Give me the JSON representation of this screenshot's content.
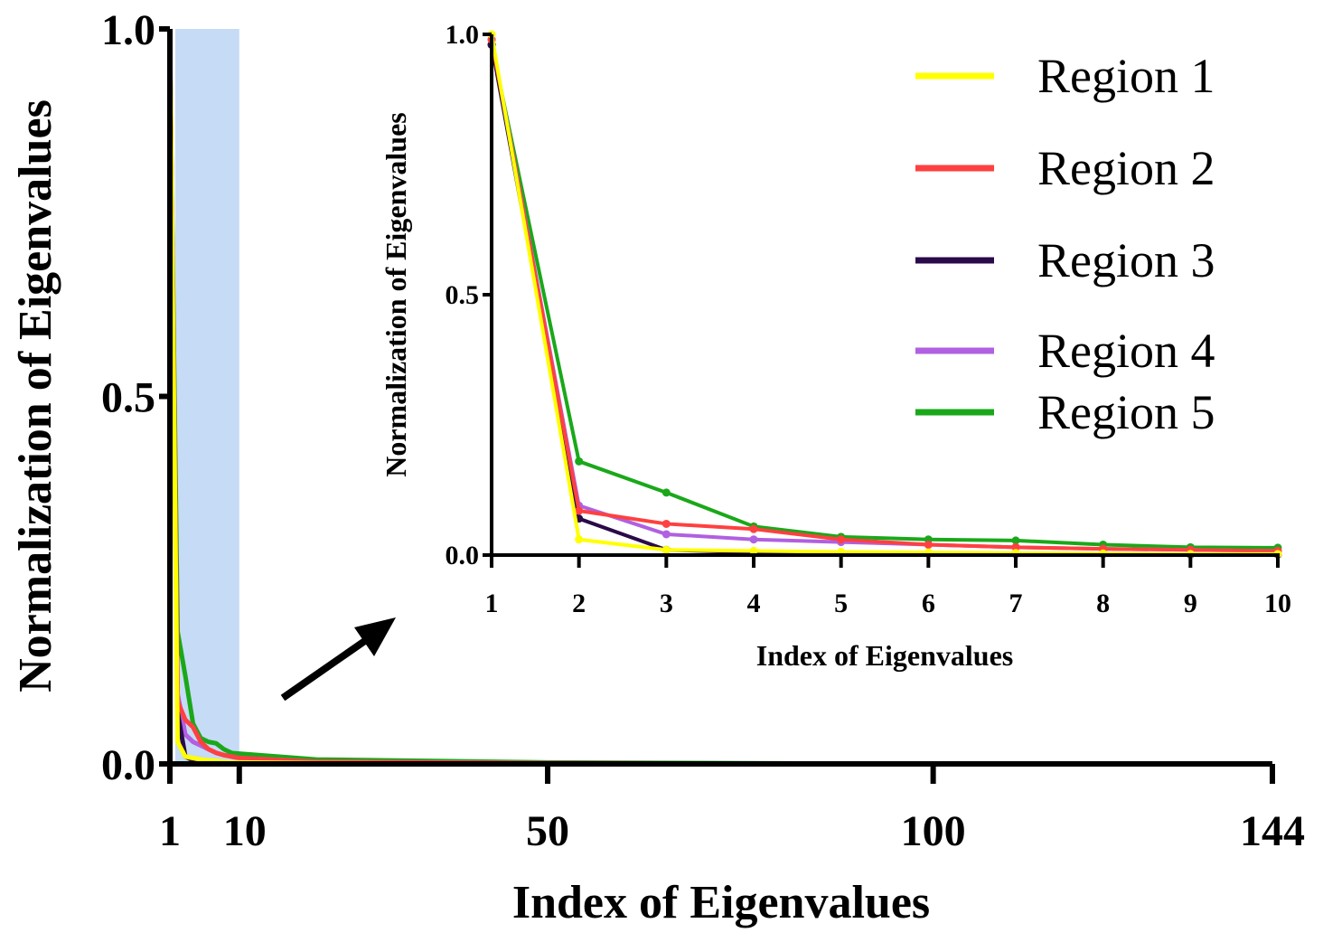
{
  "chart_data": [
    {
      "type": "line",
      "title": "",
      "xlabel": "Index of Eigenvalues",
      "ylabel": "Normalization of Eigenvalues",
      "xlim": [
        1,
        144
      ],
      "ylim": [
        0,
        1
      ],
      "xticks": [
        1,
        10,
        50,
        100,
        144
      ],
      "xtick_labels": [
        "1",
        "10",
        "50",
        "100",
        "144"
      ],
      "yticks": [
        0,
        0.5,
        1
      ],
      "ytick_labels": [
        "0.0",
        "0.5",
        "1.0"
      ],
      "highlight_range": [
        1,
        10
      ],
      "highlight_color": "#c6dbf5",
      "series": [
        {
          "name": "Region 1",
          "color": "#ffff00",
          "x": [
            1,
            2,
            3,
            4,
            5,
            6,
            7,
            8,
            9,
            10,
            20,
            50,
            100,
            144
          ],
          "values": [
            1.0,
            0.03,
            0.01,
            0.008,
            0.006,
            0.005,
            0.004,
            0.003,
            0.002,
            0.002,
            0.001,
            0.0,
            0.0,
            0.0
          ]
        },
        {
          "name": "Region 2",
          "color": "#ff4040",
          "x": [
            1,
            2,
            3,
            4,
            5,
            6,
            7,
            8,
            9,
            10,
            20,
            50,
            100,
            144
          ],
          "values": [
            0.99,
            0.085,
            0.06,
            0.05,
            0.03,
            0.02,
            0.015,
            0.012,
            0.01,
            0.008,
            0.003,
            0.001,
            0.0,
            0.0
          ]
        },
        {
          "name": "Region 3",
          "color": "#2a0a4a",
          "x": [
            1,
            2,
            3,
            4,
            5,
            6,
            7,
            8,
            9,
            10,
            20,
            50,
            100,
            144
          ],
          "values": [
            0.98,
            0.07,
            0.01,
            0.005,
            0.004,
            0.003,
            0.002,
            0.002,
            0.001,
            0.001,
            0.0,
            0.0,
            0.0,
            0.0
          ]
        },
        {
          "name": "Region 4",
          "color": "#b060e0",
          "x": [
            1,
            2,
            3,
            4,
            5,
            6,
            7,
            8,
            9,
            10,
            20,
            50,
            100,
            144
          ],
          "values": [
            0.99,
            0.095,
            0.04,
            0.03,
            0.025,
            0.02,
            0.015,
            0.012,
            0.01,
            0.008,
            0.003,
            0.001,
            0.0,
            0.0
          ]
        },
        {
          "name": "Region 5",
          "color": "#1aa81a",
          "x": [
            1,
            2,
            3,
            4,
            5,
            6,
            7,
            8,
            9,
            10,
            20,
            50,
            100,
            144
          ],
          "values": [
            0.98,
            0.18,
            0.12,
            0.055,
            0.035,
            0.03,
            0.028,
            0.02,
            0.015,
            0.014,
            0.006,
            0.002,
            0.0,
            0.0
          ]
        }
      ]
    },
    {
      "type": "line",
      "title": "",
      "xlabel": "Index of Eigenvalues",
      "ylabel": "Normalization of Eigenvalues",
      "xlim": [
        1,
        10
      ],
      "ylim": [
        0,
        1
      ],
      "xticks": [
        1,
        2,
        3,
        4,
        5,
        6,
        7,
        8,
        9,
        10
      ],
      "xtick_labels": [
        "1",
        "2",
        "3",
        "4",
        "5",
        "6",
        "7",
        "8",
        "9",
        "10"
      ],
      "yticks": [
        0,
        0.5,
        1
      ],
      "ytick_labels": [
        "0.0",
        "0.5",
        "1.0"
      ],
      "series": [
        {
          "name": "Region 1",
          "color": "#ffff00",
          "x": [
            1,
            2,
            3,
            4,
            5,
            6,
            7,
            8,
            9,
            10
          ],
          "values": [
            1.0,
            0.03,
            0.01,
            0.008,
            0.006,
            0.005,
            0.004,
            0.003,
            0.002,
            0.002
          ]
        },
        {
          "name": "Region 2",
          "color": "#ff4040",
          "x": [
            1,
            2,
            3,
            4,
            5,
            6,
            7,
            8,
            9,
            10
          ],
          "values": [
            0.99,
            0.085,
            0.06,
            0.05,
            0.03,
            0.02,
            0.015,
            0.012,
            0.01,
            0.008
          ]
        },
        {
          "name": "Region 3",
          "color": "#2a0a4a",
          "x": [
            1,
            2,
            3,
            4,
            5,
            6,
            7,
            8,
            9,
            10
          ],
          "values": [
            0.98,
            0.07,
            0.01,
            0.005,
            0.004,
            0.003,
            0.002,
            0.002,
            0.001,
            0.001
          ]
        },
        {
          "name": "Region 4",
          "color": "#b060e0",
          "x": [
            1,
            2,
            3,
            4,
            5,
            6,
            7,
            8,
            9,
            10
          ],
          "values": [
            0.99,
            0.095,
            0.04,
            0.03,
            0.025,
            0.02,
            0.015,
            0.012,
            0.01,
            0.008
          ]
        },
        {
          "name": "Region 5",
          "color": "#1aa81a",
          "x": [
            1,
            2,
            3,
            4,
            5,
            6,
            7,
            8,
            9,
            10
          ],
          "values": [
            0.98,
            0.18,
            0.12,
            0.055,
            0.035,
            0.03,
            0.028,
            0.02,
            0.015,
            0.014
          ]
        }
      ]
    }
  ],
  "legend": {
    "position": "top-right",
    "entries": [
      {
        "label": "Region 1",
        "color": "#ffff00"
      },
      {
        "label": "Region 2",
        "color": "#ff4040"
      },
      {
        "label": "Region 3",
        "color": "#2a0a4a"
      },
      {
        "label": "Region 4",
        "color": "#b060e0"
      },
      {
        "label": "Region 5",
        "color": "#1aa81a"
      }
    ]
  },
  "annotation": {
    "arrow": "zoom-inset-arrow"
  }
}
